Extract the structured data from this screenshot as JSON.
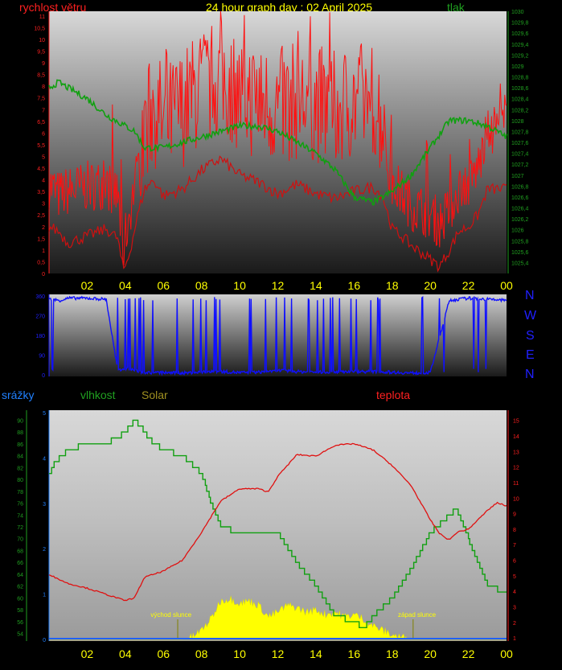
{
  "header": {
    "title": "24 hour graph day : 02 April 2025",
    "wind_label": "rychlost větru",
    "pressure_label": "tlak",
    "title_color": "#ffff00",
    "wind_color": "#ff2020",
    "pressure_color": "#20a020"
  },
  "direction_labels": [
    "N",
    "W",
    "S",
    "E",
    "N"
  ],
  "lower_labels": {
    "rain": "srážky",
    "humidity": "vlhkost",
    "solar": "Solar",
    "temperature": "teplota",
    "sunrise": "východ slunce",
    "sunset": "západ slunce"
  },
  "colors": {
    "rain": "#2080ff",
    "humidity": "#20a020",
    "solar": "#a09020",
    "temperature": "#ff2020",
    "direction": "#2020ff",
    "solar_fill": "#ffff00"
  },
  "chart_data": [
    {
      "type": "line",
      "title": "24 hour graph day : 02 April 2025",
      "x_ticks": [
        "02",
        "04",
        "06",
        "08",
        "10",
        "12",
        "14",
        "16",
        "18",
        "20",
        "22",
        "00"
      ],
      "left_axis": {
        "label": "rychlost větru",
        "ticks": [
          "0",
          "0,5",
          "1",
          "1,5",
          "2",
          "2,5",
          "3",
          "3,5",
          "4",
          "4,5",
          "5",
          "5,5",
          "6",
          "6,5",
          "7",
          "7,5",
          "8",
          "8,5",
          "9",
          "9,5",
          "10",
          "10,5",
          "11"
        ],
        "ylim": [
          0,
          11.2
        ]
      },
      "right_axis": {
        "label": "tlak",
        "ticks": [
          "1025,4",
          "1025,6",
          "1025,8",
          "1026",
          "1026,2",
          "1026,4",
          "1026,6",
          "1026,8",
          "1027",
          "1027,2",
          "1027,4",
          "1027,6",
          "1027,8",
          "1028",
          "1028,2",
          "1028,4",
          "1028,6",
          "1028,8",
          "1029",
          "1029,2",
          "1029,4",
          "1029,6",
          "1029,8",
          "1030"
        ],
        "ylim": [
          1025.2,
          1030
        ]
      },
      "series": [
        {
          "name": "rychlost větru",
          "axis": "left",
          "x": [
            0,
            0.5,
            1,
            2,
            3,
            3.6,
            3.9,
            4.2,
            4.6,
            5,
            5.5,
            6,
            7,
            8,
            9,
            10,
            11,
            12,
            13,
            14,
            15,
            16,
            17,
            17.5,
            18,
            18.5,
            19,
            20,
            20.5,
            21,
            21.5,
            22,
            22.5,
            23,
            24
          ],
          "values": [
            2,
            1.8,
            1.3,
            1.6,
            1.9,
            1.5,
            0.1,
            0.8,
            2.3,
            3.6,
            4,
            3.3,
            3.6,
            4.4,
            4.9,
            4.2,
            3.9,
            3.4,
            3.8,
            3.4,
            3.2,
            3.5,
            3.7,
            3.3,
            1.9,
            1.6,
            1.2,
            0.6,
            0.3,
            1.0,
            1.8,
            2.0,
            2.5,
            3.6,
            3.6
          ]
        },
        {
          "name": "wind gust",
          "axis": "left",
          "x": [
            0,
            0.5,
            1,
            2,
            3,
            3.6,
            3.9,
            4.2,
            4.6,
            5,
            5.5,
            6,
            7,
            8,
            9,
            10,
            11,
            12,
            13,
            14,
            15,
            16,
            17,
            17.5,
            18,
            18.5,
            19,
            20,
            20.5,
            21,
            21.5,
            22,
            22.5,
            23,
            24
          ],
          "values": [
            3.5,
            3,
            3.2,
            3.4,
            3.5,
            3,
            0.7,
            2.2,
            3.9,
            5.5,
            6.4,
            5.6,
            6.3,
            7.2,
            7.6,
            6.9,
            6.6,
            6.3,
            6.6,
            6.5,
            6.2,
            6.6,
            6.7,
            5.8,
            3.5,
            3.1,
            2.6,
            2.2,
            1.8,
            2.4,
            3.3,
            3.5,
            4.2,
            5.6,
            6.4
          ]
        },
        {
          "name": "tlak",
          "axis": "right",
          "x": [
            0,
            0.5,
            1,
            2,
            3,
            4,
            4.5,
            5,
            6,
            7,
            8,
            9,
            10,
            11,
            12,
            13,
            14,
            15,
            16,
            17,
            18,
            19,
            20,
            21,
            22,
            23,
            24
          ],
          "values": [
            1028.6,
            1028.7,
            1028.6,
            1028.4,
            1028.1,
            1027.9,
            1027.8,
            1027.5,
            1027.5,
            1027.6,
            1027.7,
            1027.8,
            1027.9,
            1027.9,
            1027.8,
            1027.6,
            1027.4,
            1027.1,
            1026.6,
            1026.5,
            1026.7,
            1027.0,
            1027.5,
            1028.0,
            1028.0,
            1027.9,
            1027.7
          ]
        }
      ]
    },
    {
      "type": "line",
      "title": "wind direction",
      "x_ticks": [],
      "y_ticks": [
        "0",
        "90",
        "180",
        "270",
        "360"
      ],
      "ylim": [
        0,
        360
      ],
      "series": [
        {
          "name": "wind direction",
          "x": [
            0,
            0.6,
            1,
            2,
            3,
            3.6,
            4,
            5,
            6,
            7,
            8,
            9,
            10,
            11,
            12,
            13,
            14,
            15,
            16,
            17,
            18,
            19,
            20,
            21,
            22,
            23,
            24
          ],
          "values": [
            345,
            340,
            350,
            350,
            345,
            20,
            30,
            10,
            10,
            8,
            12,
            15,
            10,
            12,
            20,
            15,
            12,
            15,
            15,
            15,
            12,
            8,
            10,
            340,
            350,
            345,
            340
          ]
        }
      ]
    },
    {
      "type": "area",
      "title": "",
      "x_ticks": [
        "02",
        "04",
        "06",
        "08",
        "10",
        "12",
        "14",
        "16",
        "18",
        "20",
        "22",
        "00"
      ],
      "humidity_axis": {
        "ticks": [
          "54",
          "56",
          "58",
          "60",
          "62",
          "64",
          "66",
          "68",
          "70",
          "72",
          "74",
          "76",
          "78",
          "80",
          "82",
          "84",
          "86",
          "88",
          "90"
        ],
        "ylim": [
          53,
          91
        ]
      },
      "temperature_axis": {
        "ticks": [
          "1",
          "2",
          "3",
          "4",
          "5",
          "6",
          "7",
          "8",
          "9",
          "10",
          "11",
          "12",
          "13",
          "14",
          "15"
        ],
        "ylim": [
          0.9,
          15.4
        ]
      },
      "solar_axis": {
        "ticks": [
          "0",
          "1",
          "2",
          "3",
          "4",
          "5"
        ],
        "ylim": [
          0,
          5
        ]
      },
      "series": [
        {
          "name": "vlhkost",
          "axis": "humidity",
          "x": [
            0,
            0.3,
            1,
            2,
            3,
            4,
            4.5,
            5,
            5.5,
            6,
            7,
            8,
            8.5,
            9,
            10,
            11,
            12,
            13,
            14,
            15,
            16,
            16.5,
            17,
            18,
            19,
            20,
            21,
            21.4,
            22,
            23,
            24
          ],
          "values": [
            81,
            83,
            85,
            86,
            86,
            88,
            90,
            88,
            86,
            85,
            84,
            81,
            76,
            72,
            71,
            71,
            71,
            66,
            62,
            57,
            56,
            55,
            57,
            60,
            65,
            71,
            74,
            75,
            70,
            62,
            61
          ]
        },
        {
          "name": "teplota",
          "axis": "temperature",
          "x": [
            0,
            0.3,
            1,
            2,
            3,
            4,
            4.5,
            5,
            6,
            7,
            8,
            9,
            10,
            11,
            11.5,
            12,
            13,
            14,
            15,
            16,
            17,
            18,
            19,
            20,
            20.5,
            21,
            21.4,
            22,
            23,
            23.5,
            24
          ],
          "values": [
            5.1,
            4.9,
            4.5,
            4.2,
            3.8,
            3.4,
            3.6,
            4.9,
            5.3,
            6.0,
            7.8,
            9.8,
            10.6,
            10.6,
            10.4,
            11.4,
            12.8,
            12.7,
            13.4,
            13.5,
            13.1,
            12.1,
            10.8,
            8.6,
            7.7,
            7.3,
            7.8,
            8.0,
            9.2,
            9.7,
            9.5
          ]
        },
        {
          "name": "Solar",
          "axis": "solar",
          "x": [
            0,
            7,
            7.5,
            8,
            8.5,
            9,
            9.5,
            10,
            10.5,
            11,
            11.5,
            12,
            12.5,
            13,
            13.5,
            14,
            14.5,
            15,
            15.5,
            16,
            16.5,
            17,
            17.5,
            18,
            18.5,
            19,
            24
          ],
          "values": [
            0,
            0,
            0.05,
            0.2,
            0.45,
            0.85,
            0.9,
            0.8,
            0.85,
            0.75,
            0.5,
            0.6,
            0.75,
            0.7,
            0.6,
            0.65,
            0.55,
            0.6,
            0.5,
            0.55,
            0.45,
            0.3,
            0.2,
            0.1,
            0.05,
            0,
            0
          ]
        },
        {
          "name": "srážky",
          "axis": "solar",
          "x": [
            0,
            24
          ],
          "values": [
            0,
            0
          ]
        }
      ]
    }
  ]
}
